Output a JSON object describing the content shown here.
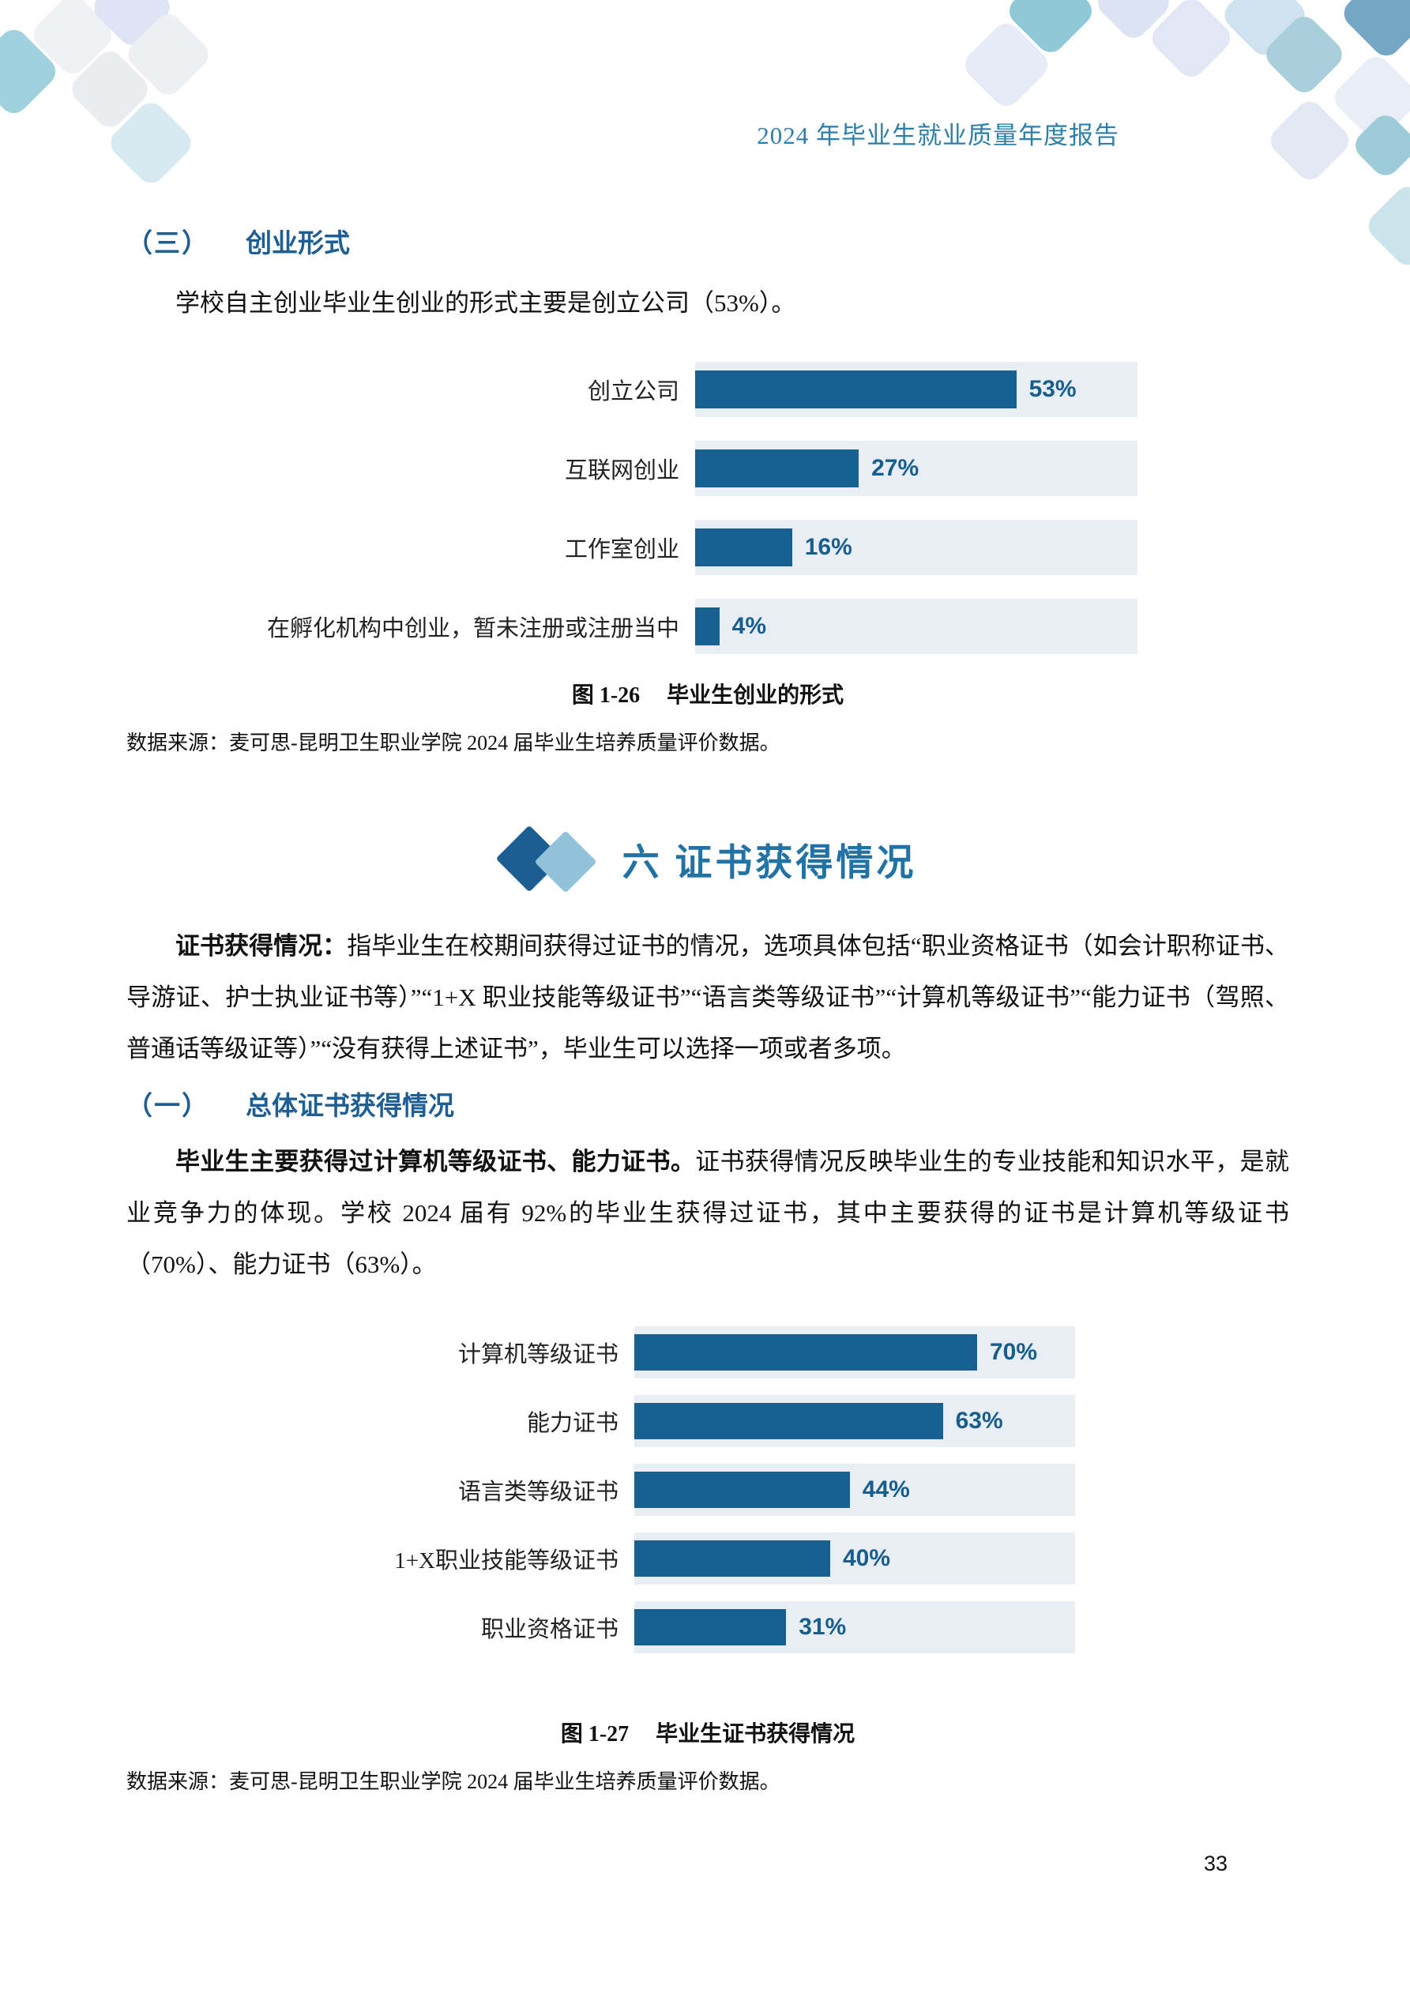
{
  "page": {
    "header_title": "2024 年毕业生就业质量年度报告",
    "page_number": "33"
  },
  "colors": {
    "bar_blue": "#166191",
    "track_gray": "#e9edf4",
    "value_label_blue": "#155e8e",
    "heading_blue": "#1d5f95",
    "section_title_blue": "#2273a5",
    "header_teal": "#2d7ea8"
  },
  "section3": {
    "heading_num": "（三）",
    "heading_title": "创业形式",
    "paragraph": "学校自主创业毕业生创业的形式主要是创立公司（53%）。"
  },
  "chart_data": [
    {
      "type": "bar",
      "orientation": "horizontal",
      "title": "图 1-26 毕业生创业的形式",
      "categories": [
        "创立公司",
        "互联网创业",
        "工作室创业",
        "在孵化机构中创业，暂未注册或注册当中"
      ],
      "values": [
        53,
        27,
        16,
        4
      ],
      "unit": "%",
      "value_labels": [
        "53%",
        "27%",
        "16%",
        "4%"
      ],
      "track_max": 73,
      "bar_color": "#166191",
      "track_color": "#e9edf4",
      "grid": false,
      "legend": "none"
    },
    {
      "type": "bar",
      "orientation": "horizontal",
      "title": "图 1-27 毕业生证书获得情况",
      "categories": [
        "计算机等级证书",
        "能力证书",
        "语言类等级证书",
        "1+X职业技能等级证书",
        "职业资格证书"
      ],
      "values": [
        70,
        63,
        44,
        40,
        31
      ],
      "unit": "%",
      "value_labels": [
        "70%",
        "63%",
        "44%",
        "40%",
        "31%"
      ],
      "track_max": 90,
      "bar_color": "#166191",
      "track_color": "#e9edf4",
      "grid": false,
      "legend": "none"
    }
  ],
  "figure1": {
    "caption_no": "图 1-26",
    "caption_title": "毕业生创业的形式",
    "source": "数据来源：麦可思-昆明卫生职业学院 2024 届毕业生培养质量评价数据。"
  },
  "figure2": {
    "caption_no": "图 1-27",
    "caption_title": "毕业生证书获得情况",
    "source": "数据来源：麦可思-昆明卫生职业学院 2024 届毕业生培养质量评价数据。"
  },
  "section6": {
    "title": "六 证书获得情况",
    "intro_lead": "证书获得情况：",
    "intro_rest": "指毕业生在校期间获得过证书的情况，选项具体包括“职业资格证书（如会计职称证书、导游证、护士执业证书等）”“1+X 职业技能等级证书”“语言类等级证书”“计算机等级证书”“能力证书（驾照、普通话等级证等）”“没有获得上述证书”，毕业生可以选择一项或者多项。",
    "sub1_num": "（一）",
    "sub1_title": "总体证书获得情况",
    "para_lead": "毕业生主要获得过计算机等级证书、能力证书。",
    "para_rest": "证书获得情况反映毕业生的专业技能和知识水平，是就业竞争力的体现。学校 2024 届有 92%的毕业生获得过证书，其中主要获得的证书是计算机等级证书（70%）、能力证书（63%）。"
  }
}
